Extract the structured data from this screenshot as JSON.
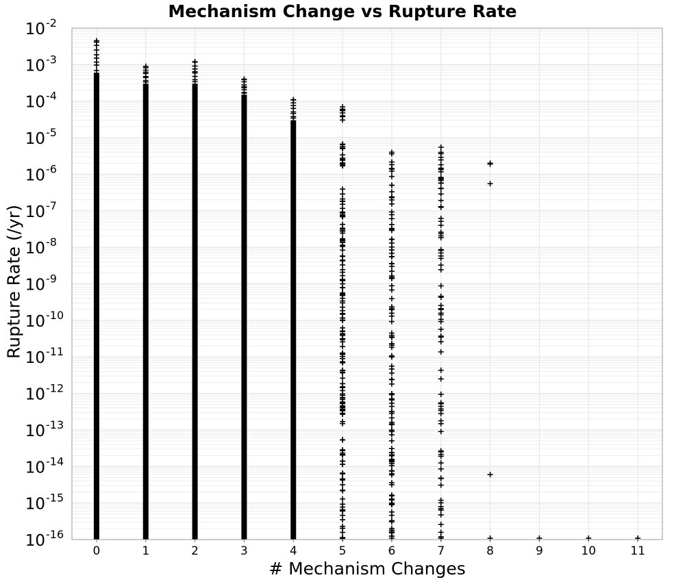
{
  "chart_data": {
    "type": "scatter",
    "title": "Mechanism Change vs Rupture Rate",
    "xlabel": "# Mechanism Changes",
    "ylabel": "Rupture Rate (/yr)",
    "x_ticks": [
      "0",
      "1",
      "2",
      "3",
      "4",
      "5",
      "6",
      "7",
      "8",
      "9",
      "10",
      "11"
    ],
    "xlim": [
      -0.5,
      11.5
    ],
    "y_scale": "log",
    "ylim": [
      1e-16,
      0.01
    ],
    "y_tick_exponents": [
      -2,
      -3,
      -4,
      -5,
      -6,
      -7,
      -8,
      -9,
      -10,
      -11,
      -12,
      -13,
      -14,
      -15,
      -16
    ],
    "y_tick_base": "10",
    "grid": true,
    "marker": "plus",
    "marker_color": "#000000",
    "columns": [
      {
        "x": 0,
        "max_rate": 0.0045,
        "dense_top": 0.0006
      },
      {
        "x": 1,
        "max_rate": 0.0009,
        "dense_top": 0.0003
      },
      {
        "x": 2,
        "max_rate": 0.0012,
        "dense_top": 0.0003
      },
      {
        "x": 3,
        "max_rate": 0.0004,
        "dense_top": 0.00015
      },
      {
        "x": 4,
        "max_rate": 0.00011,
        "dense_top": 3e-05
      },
      {
        "x": 5,
        "max_rate": 7e-05,
        "dense_top": 2e-05
      },
      {
        "x": 6,
        "max_rate": 4e-06,
        "dense_top": 4e-06
      },
      {
        "x": 7,
        "max_rate": 5.5e-06,
        "dense_top": 5e-06
      }
    ],
    "points": [
      {
        "x": 8,
        "y": 2e-06
      },
      {
        "x": 8,
        "y": 1.9e-06
      },
      {
        "x": 8,
        "y": 5.5e-07
      },
      {
        "x": 8,
        "y": 6e-15
      },
      {
        "x": 8,
        "y": 1e-16
      },
      {
        "x": 9,
        "y": 1e-16
      },
      {
        "x": 10,
        "y": 1e-16
      },
      {
        "x": 11,
        "y": 1e-16
      }
    ]
  }
}
